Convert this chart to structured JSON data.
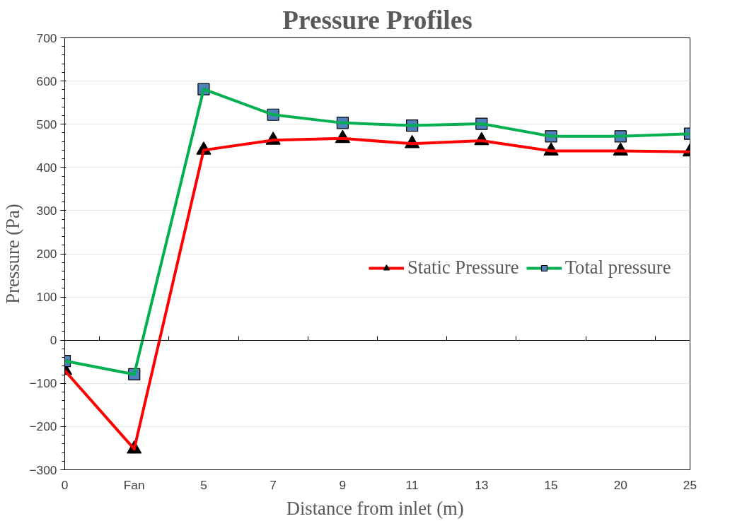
{
  "chart_data": {
    "type": "line",
    "title": "Pressure Profiles",
    "xlabel": "Distance from inlet  (m)",
    "ylabel": "Pressure (Pa)",
    "categories": [
      "0",
      "Fan",
      "5",
      "7",
      "9",
      "11",
      "13",
      "15",
      "20",
      "25"
    ],
    "series": [
      {
        "name": "Static Pressure",
        "color": "#ff0000",
        "marker": "triangle",
        "values": [
          -70,
          -252,
          440,
          463,
          467,
          455,
          462,
          438,
          438,
          436
        ]
      },
      {
        "name": "Total pressure",
        "color": "#00b050",
        "marker": "square",
        "values": [
          -48,
          -79,
          581,
          522,
          503,
          497,
          501,
          472,
          472,
          478
        ]
      }
    ],
    "ylim": [
      -300,
      700
    ],
    "yticks": [
      -300,
      -200,
      -100,
      0,
      100,
      200,
      300,
      400,
      500,
      600,
      700
    ],
    "grid": "y",
    "legend": "right",
    "line_style": "solid"
  }
}
